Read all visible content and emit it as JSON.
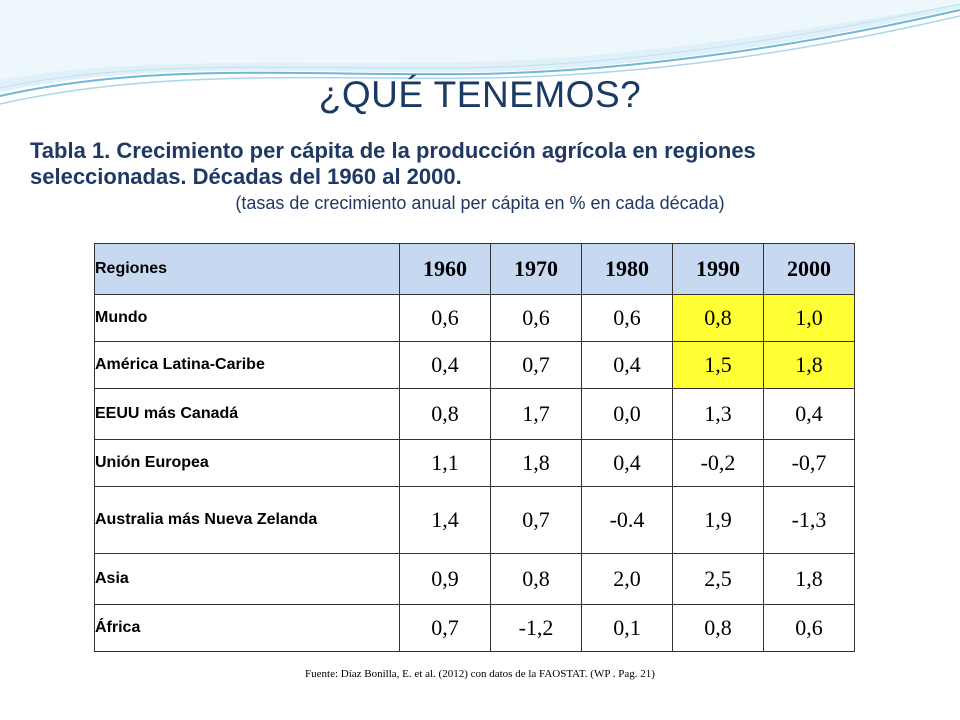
{
  "slide": {
    "title": "¿QUÉ TENEMOS?",
    "caption_line1": "Tabla 1. Crecimiento per cápita de la producción agrícola en regiones",
    "caption_line2": "seleccionadas. Décadas del 1960 al 2000.",
    "caption_sub": "(tasas de crecimiento anual per cápita en % en cada década)",
    "source": "Fuente: Díaz Bonilla, E. et al. (2012) con datos de la FAOSTAT.  (WP . Pag. 21)"
  },
  "colors": {
    "header_bg": "#c6d9f1",
    "highlight": "#ffff33",
    "title": "#1b3a63",
    "wave": "#6fb7d6"
  },
  "table": {
    "header": [
      "Regiones",
      "1960",
      "1970",
      "1980",
      "1990",
      "2000"
    ],
    "rows": [
      {
        "region": "Mundo",
        "values": [
          "0,6",
          "0,6",
          "0,6",
          "0,8",
          "1,0"
        ],
        "highlight": [
          false,
          false,
          false,
          true,
          true
        ]
      },
      {
        "region": "América Latina-Caribe",
        "values": [
          "0,4",
          "0,7",
          "0,4",
          "1,5",
          "1,8"
        ],
        "highlight": [
          false,
          false,
          false,
          true,
          true
        ]
      },
      {
        "region": "EEUU más Canadá",
        "values": [
          "0,8",
          "1,7",
          "0,0",
          "1,3",
          "0,4"
        ],
        "highlight": [
          false,
          false,
          false,
          false,
          false
        ]
      },
      {
        "region": "Unión Europea",
        "values": [
          "1,1",
          "1,8",
          "0,4",
          "-0,2",
          "-0,7"
        ],
        "highlight": [
          false,
          false,
          false,
          false,
          false
        ]
      },
      {
        "region": "Australia más Nueva Zelanda",
        "values": [
          "1,4",
          "0,7",
          "-0.4",
          "1,9",
          "-1,3"
        ],
        "highlight": [
          false,
          false,
          false,
          false,
          false
        ]
      },
      {
        "region": "Asia",
        "values": [
          "0,9",
          "0,8",
          "2,0",
          "2,5",
          "1,8"
        ],
        "highlight": [
          false,
          false,
          false,
          false,
          false
        ]
      },
      {
        "region": "África",
        "values": [
          "0,7",
          "-1,2",
          "0,1",
          "0,8",
          "0,6"
        ],
        "highlight": [
          false,
          false,
          false,
          false,
          false
        ]
      }
    ]
  }
}
